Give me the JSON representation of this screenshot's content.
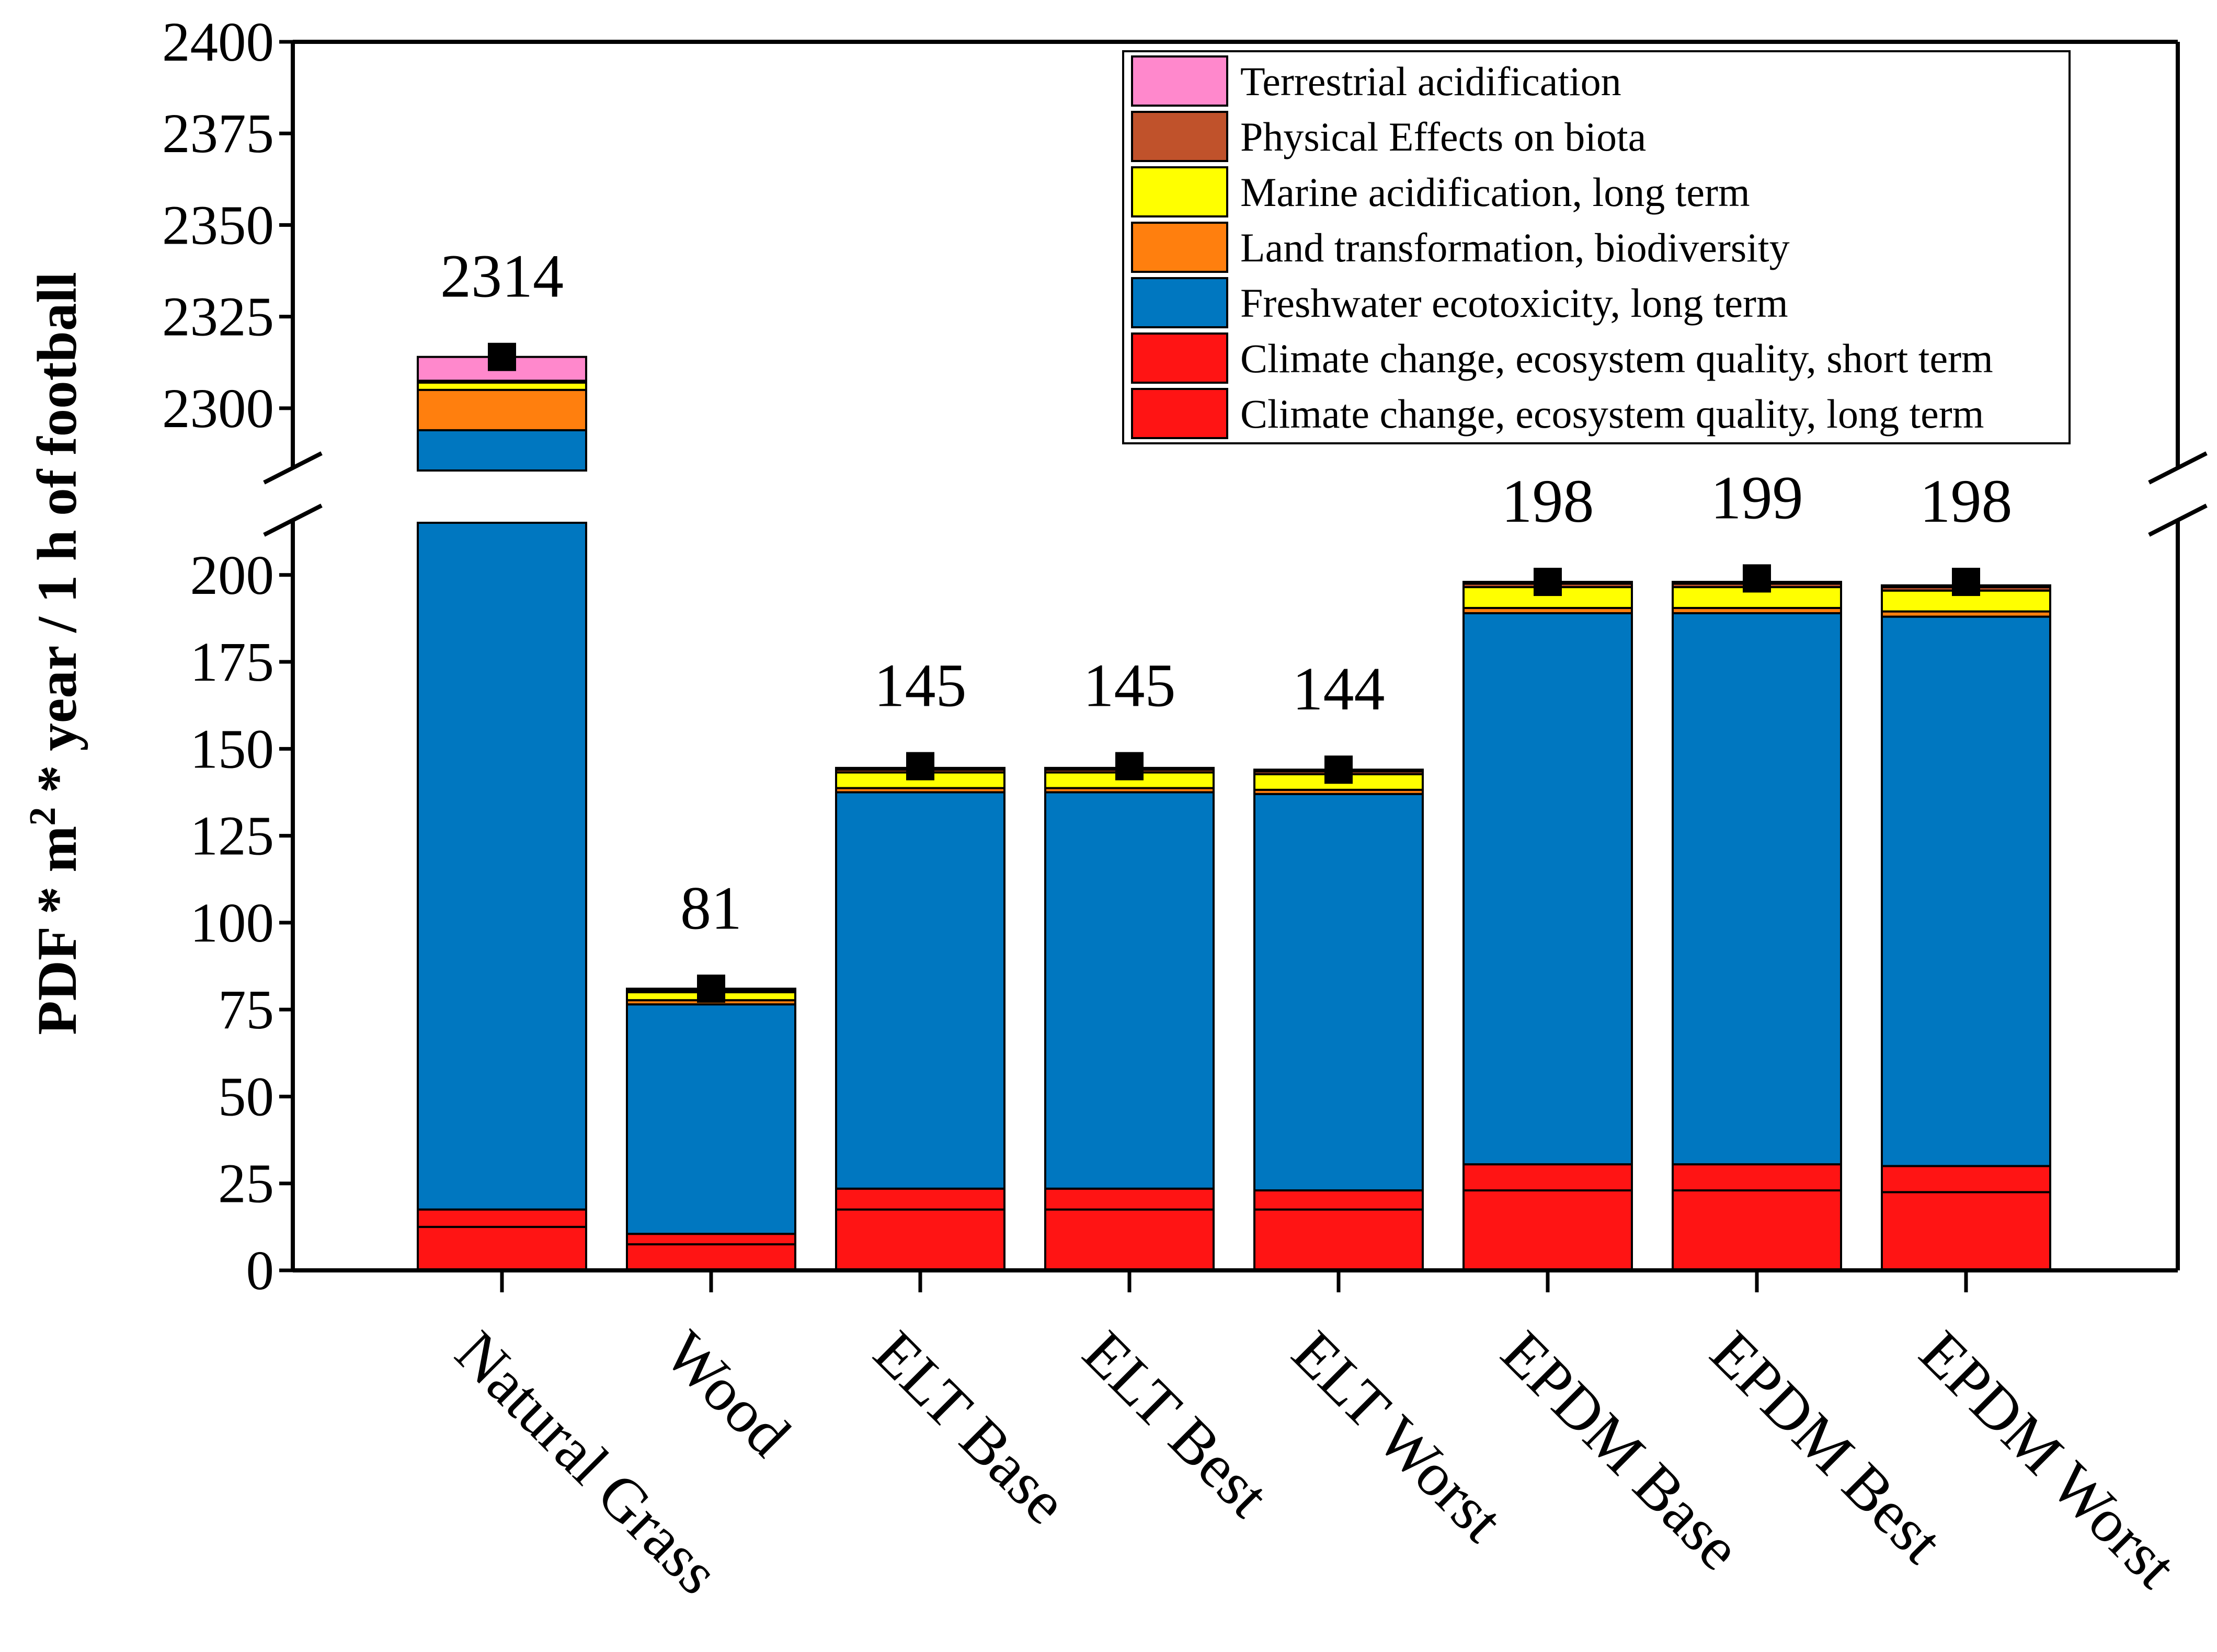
{
  "chart_data": {
    "type": "bar",
    "stacked": true,
    "broken_y_axis": true,
    "title": "",
    "xlabel": "",
    "ylabel": "PDF * m² * year / 1 h of football",
    "ylabel_parts": {
      "left": "PDF * m",
      "sup": "2",
      "right": " * year / 1 h of football"
    },
    "ylim_lower": [
      0,
      215
    ],
    "ylim_upper": [
      2283,
      2400
    ],
    "yticks_lower": [
      "0",
      "25",
      "50",
      "75",
      "100",
      "125",
      "150",
      "175",
      "200"
    ],
    "yticks_upper": [
      "2300",
      "2325",
      "2350",
      "2375",
      "2400"
    ],
    "categories": [
      "Natural Grass",
      "Wood",
      "ELT Base",
      "ELT Best",
      "ELT Worst",
      "EPDM Base",
      "EPDM Best",
      "EPDM Worst"
    ],
    "totals": [
      2314,
      81,
      145,
      145,
      144,
      198,
      199,
      198
    ],
    "total_labels": [
      "2314",
      "81",
      "145",
      "145",
      "144",
      "198",
      "199",
      "198"
    ],
    "legend_position": "top-right",
    "series": [
      {
        "name": "Climate change, ecosystem quality, long term",
        "color": "#FF1414",
        "values": [
          12.5,
          7.5,
          17.5,
          17.5,
          17.5,
          23,
          23,
          22.5
        ]
      },
      {
        "name": "Climate change, ecosystem quality, short term",
        "color": "#FF1414",
        "values": [
          5,
          3,
          6,
          6,
          5.5,
          7.5,
          7.5,
          7.5
        ]
      },
      {
        "name": "Freshwater ecotoxicity, long term",
        "color": "#0077C0",
        "values": [
          2276.5,
          66,
          114,
          114,
          114,
          158.5,
          158.5,
          158
        ]
      },
      {
        "name": "Land transformation, biodiversity",
        "color": "#FF7F0E",
        "values": [
          11,
          1.2,
          1.2,
          1.2,
          1.2,
          1.5,
          1.5,
          1.5
        ]
      },
      {
        "name": "Marine acidification, long term",
        "color": "#FFFF00",
        "values": [
          2,
          2.3,
          4.5,
          4.5,
          4.5,
          6,
          6,
          6
        ]
      },
      {
        "name": "Physical Effects on biota",
        "color": "#C0522B",
        "values": [
          0.5,
          0.5,
          0.8,
          0.8,
          0.8,
          1,
          1,
          1
        ]
      },
      {
        "name": "Terrestrial acidification",
        "color": "#FF88CC",
        "values": [
          6.5,
          0.5,
          0.5,
          0.5,
          0.5,
          0.5,
          0.5,
          0.5
        ]
      }
    ],
    "legend_order": [
      "Terrestrial acidification",
      "Physical Effects on biota",
      "Marine acidification, long term",
      "Land transformation, biodiversity",
      "Freshwater ecotoxicity, long term",
      "Climate change, ecosystem quality, short term",
      "Climate change, ecosystem quality, long term"
    ]
  }
}
